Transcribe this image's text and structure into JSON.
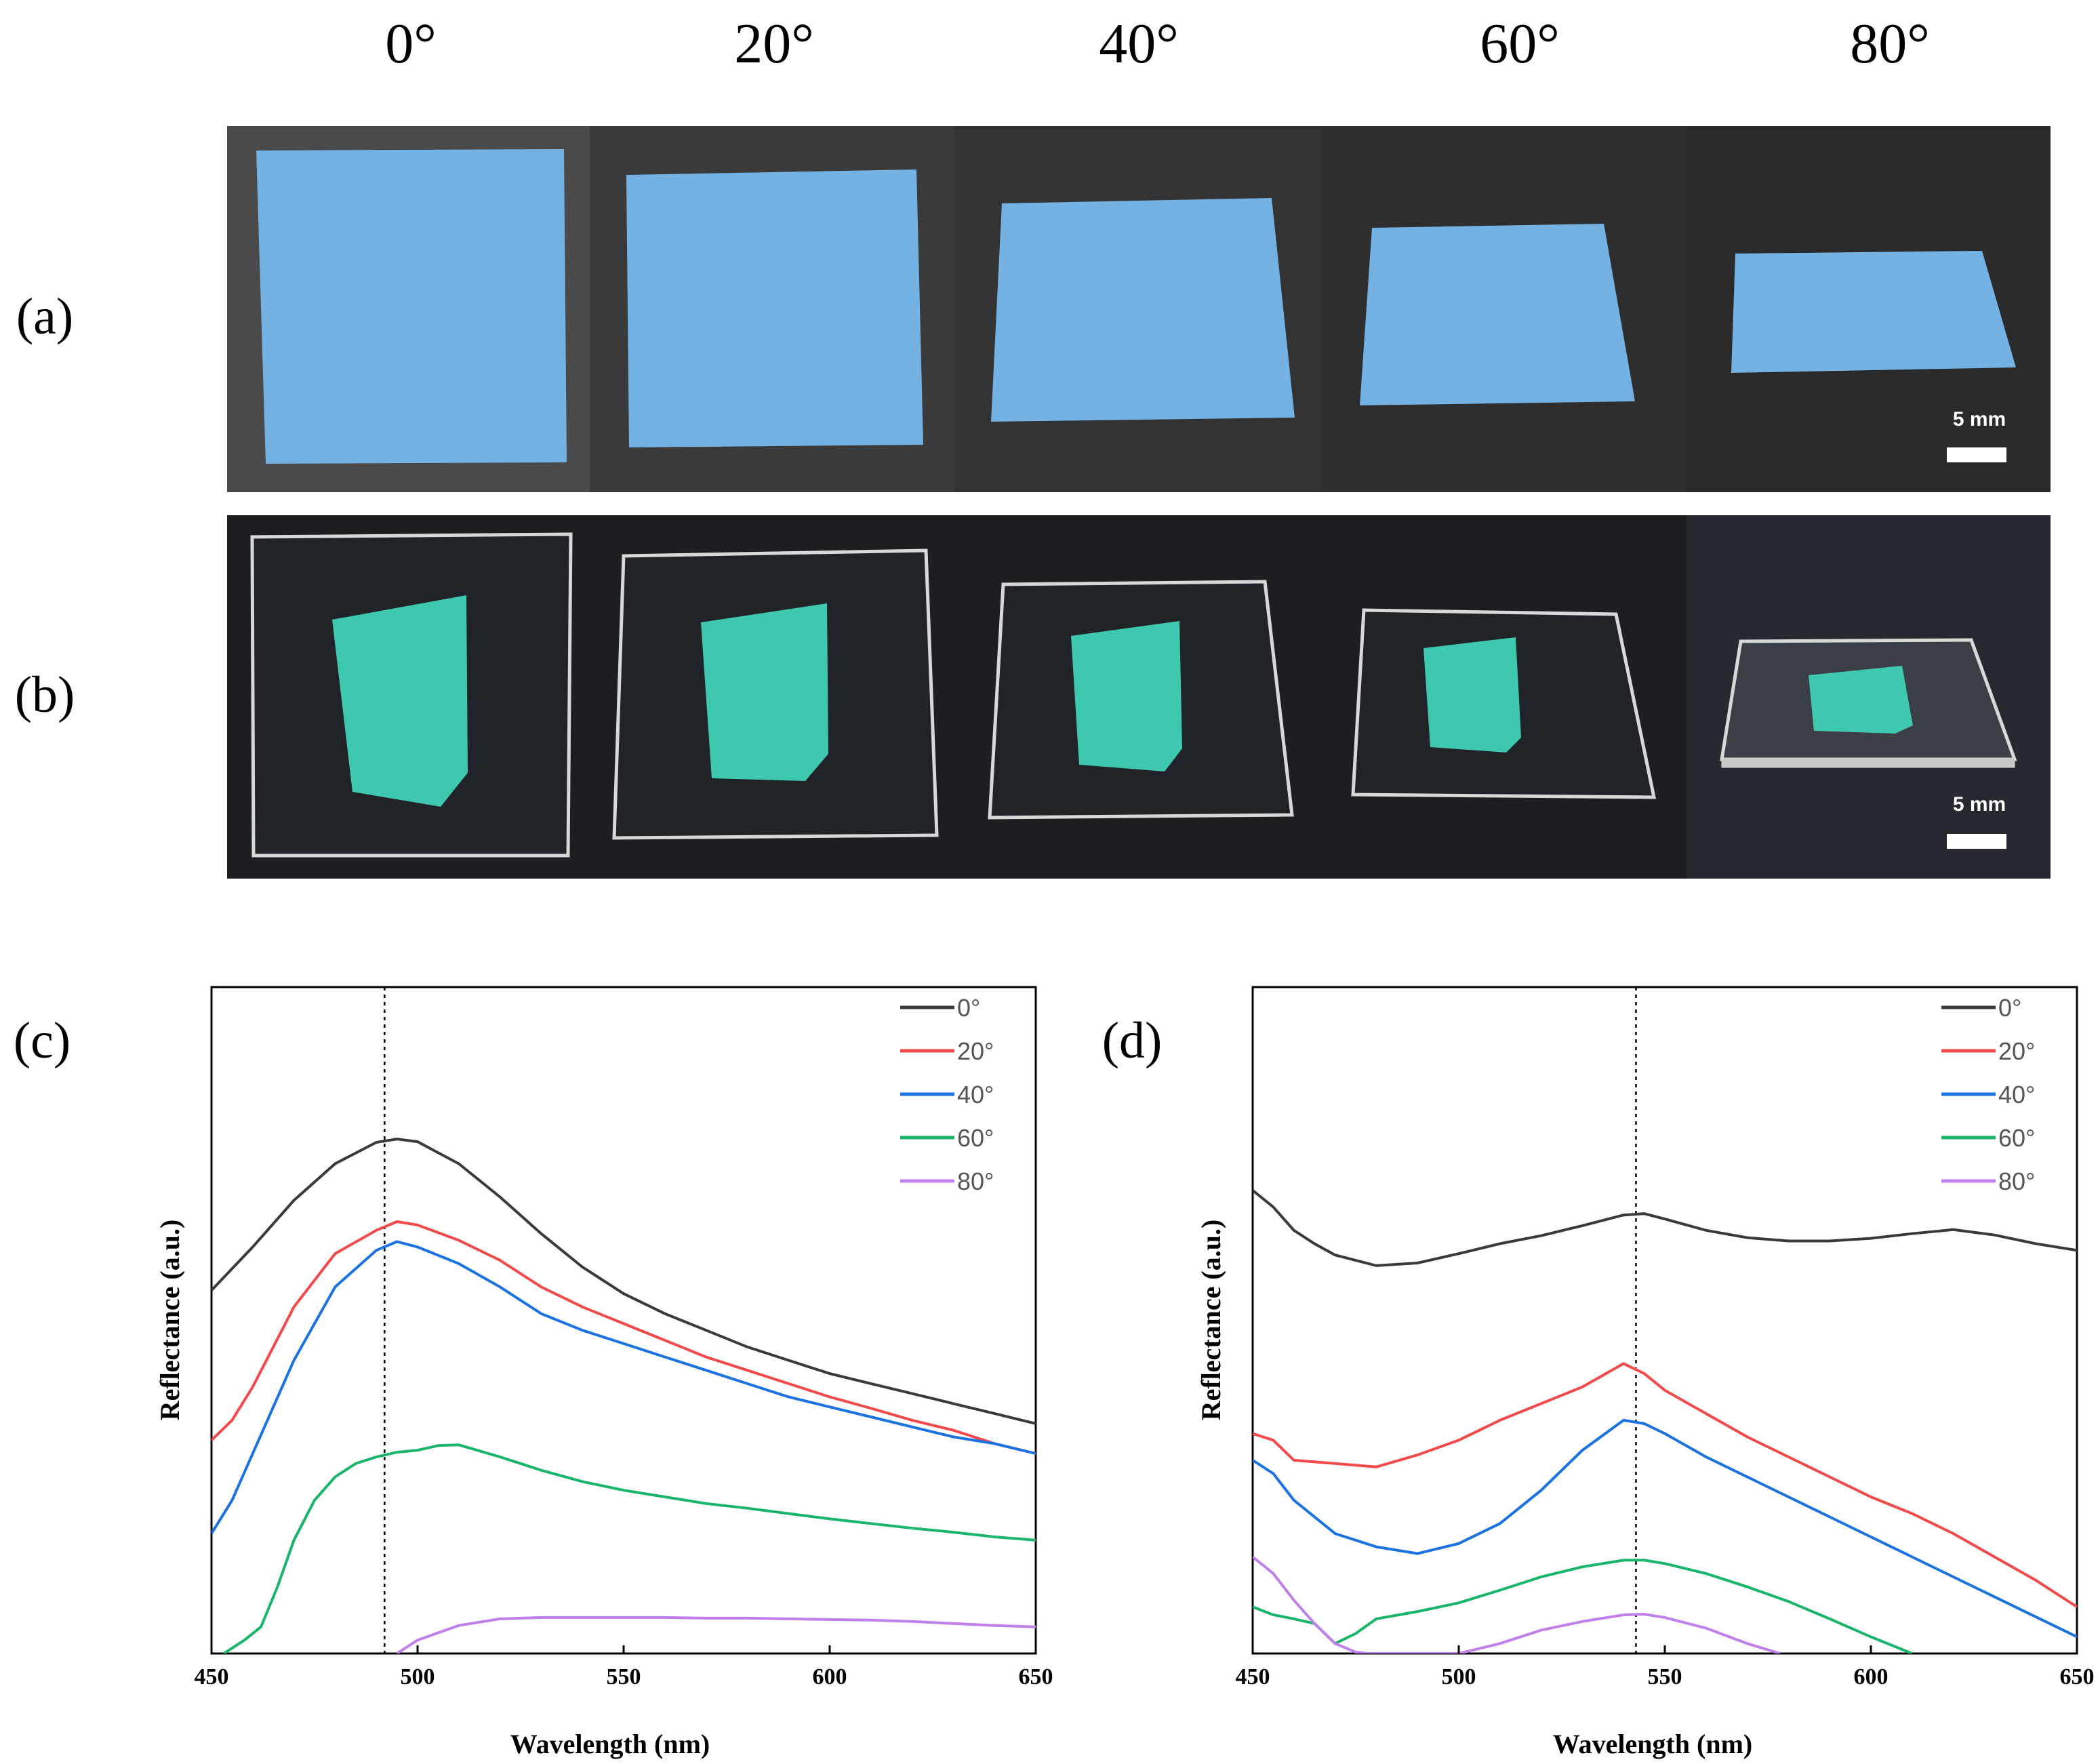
{
  "figure": {
    "angle_headers": [
      "0°",
      "20°",
      "40°",
      "60°",
      "80°"
    ],
    "row_labels": {
      "a": "(a)",
      "b": "(b)"
    },
    "scale_bar_label": "5 mm",
    "colors": {
      "row_a_background": "#2b2b2b",
      "row_a_film": "#74b2e4",
      "row_b_background": "#1c1e22",
      "row_b_film": "#3ec8b0",
      "glass_edge": "#d8d8d8",
      "scale_bar": "#ffffff"
    },
    "panels": {
      "c": {
        "label": "(c)"
      },
      "d": {
        "label": "(d)"
      }
    }
  },
  "chart_data": [
    {
      "id": "c",
      "type": "line",
      "label": "(c)",
      "title": "",
      "xlabel": "Wavelength (nm)",
      "ylabel": "Reflectance (a.u.)",
      "xlim": [
        450,
        650
      ],
      "ylim": [
        0,
        100
      ],
      "x_ticks": [
        450,
        500,
        550,
        600,
        650
      ],
      "y_ticks_shown": false,
      "grid": false,
      "legend_position": "top-right",
      "reference_line_x": 492,
      "series": [
        {
          "name": "0°",
          "color": "#3a3a3a",
          "x": [
            450,
            460,
            470,
            480,
            490,
            495,
            500,
            510,
            520,
            530,
            540,
            550,
            560,
            570,
            580,
            590,
            600,
            610,
            620,
            630,
            640,
            650
          ],
          "y": [
            54.5,
            61,
            68,
            73.5,
            76.7,
            77.2,
            76.8,
            73.5,
            68.5,
            63,
            58,
            54,
            51,
            48.5,
            46,
            44,
            42,
            40.5,
            39,
            37.5,
            36,
            34.5
          ]
        },
        {
          "name": "20°",
          "color": "#f24a4a",
          "x": [
            450,
            455,
            460,
            470,
            480,
            490,
            495,
            500,
            510,
            520,
            530,
            540,
            550,
            560,
            570,
            580,
            590,
            600,
            610,
            620,
            630,
            640,
            650
          ],
          "y": [
            32,
            35,
            40,
            52,
            60,
            63.5,
            64.8,
            64.3,
            62,
            59,
            55,
            52,
            49.5,
            47,
            44.5,
            42.5,
            40.5,
            38.5,
            36.8,
            35,
            33.5,
            31.5,
            30
          ]
        },
        {
          "name": "40°",
          "color": "#1a73e0",
          "x": [
            450,
            455,
            460,
            470,
            480,
            490,
            495,
            500,
            510,
            520,
            530,
            540,
            550,
            560,
            570,
            580,
            590,
            600,
            610,
            620,
            630,
            640,
            650
          ],
          "y": [
            18,
            23,
            30,
            44,
            55,
            60.5,
            61.8,
            61,
            58.5,
            55,
            51,
            48.5,
            46.5,
            44.5,
            42.5,
            40.5,
            38.5,
            37,
            35.5,
            34,
            32.5,
            31.5,
            30
          ]
        },
        {
          "name": "60°",
          "color": "#19b56a",
          "x": [
            453,
            458,
            462,
            466,
            470,
            475,
            480,
            485,
            490,
            495,
            500,
            505,
            510,
            520,
            530,
            540,
            550,
            560,
            570,
            580,
            590,
            600,
            610,
            620,
            630,
            640,
            650
          ],
          "y": [
            0,
            2,
            4,
            10,
            17,
            23,
            26.5,
            28.5,
            29.5,
            30.2,
            30.5,
            31.2,
            31.3,
            29.5,
            27.5,
            25.8,
            24.5,
            23.5,
            22.5,
            21.8,
            21,
            20.2,
            19.5,
            18.8,
            18.2,
            17.5,
            17
          ]
        },
        {
          "name": "80°",
          "color": "#c080ec",
          "x": [
            495,
            500,
            510,
            520,
            530,
            540,
            550,
            560,
            570,
            580,
            590,
            600,
            610,
            620,
            630,
            640,
            650
          ],
          "y": [
            0,
            2,
            4.2,
            5.2,
            5.4,
            5.4,
            5.4,
            5.4,
            5.3,
            5.3,
            5.2,
            5.1,
            5.0,
            4.8,
            4.5,
            4.2,
            4.0
          ]
        }
      ]
    },
    {
      "id": "d",
      "type": "line",
      "label": "(d)",
      "title": "",
      "xlabel": "Wavelength (nm)",
      "ylabel": "Reflectance (a.u.)",
      "xlim": [
        450,
        650
      ],
      "ylim": [
        0,
        100
      ],
      "x_ticks": [
        450,
        500,
        550,
        600,
        650
      ],
      "y_ticks_shown": false,
      "grid": false,
      "legend_position": "top-right",
      "reference_line_x": 543,
      "series": [
        {
          "name": "0°",
          "color": "#3a3a3a",
          "x": [
            450,
            455,
            460,
            465,
            470,
            480,
            490,
            500,
            510,
            520,
            530,
            540,
            545,
            550,
            560,
            570,
            580,
            590,
            600,
            610,
            620,
            630,
            640,
            650
          ],
          "y": [
            69.5,
            67,
            63.5,
            61.5,
            59.8,
            58.2,
            58.6,
            60,
            61.5,
            62.7,
            64.2,
            65.8,
            66,
            65.2,
            63.5,
            62.4,
            61.9,
            61.9,
            62.3,
            63,
            63.6,
            62.8,
            61.5,
            60.5
          ]
        },
        {
          "name": "20°",
          "color": "#f24a4a",
          "x": [
            450,
            455,
            460,
            470,
            480,
            490,
            500,
            510,
            520,
            530,
            540,
            545,
            550,
            560,
            570,
            580,
            590,
            600,
            610,
            620,
            630,
            640,
            650
          ],
          "y": [
            33,
            32,
            29,
            28.5,
            28,
            29.8,
            32,
            35,
            37.5,
            40,
            43.5,
            42,
            39.5,
            36,
            32.5,
            29.5,
            26.5,
            23.5,
            21,
            18,
            14.5,
            11,
            7
          ]
        },
        {
          "name": "40°",
          "color": "#1a73e0",
          "x": [
            450,
            455,
            460,
            470,
            480,
            490,
            500,
            510,
            520,
            530,
            540,
            545,
            550,
            560,
            570,
            580,
            590,
            600,
            610,
            620,
            630,
            640,
            650
          ],
          "y": [
            29,
            27,
            23,
            18,
            16,
            15,
            16.5,
            19.5,
            24.5,
            30.5,
            35,
            34.5,
            33,
            29.5,
            26.5,
            23.5,
            20.5,
            17.5,
            14.5,
            11.5,
            8.5,
            5.5,
            2.5
          ]
        },
        {
          "name": "60°",
          "color": "#19b56a",
          "x": [
            450,
            455,
            460,
            465,
            470,
            475,
            480,
            490,
            500,
            510,
            520,
            530,
            540,
            545,
            550,
            560,
            570,
            580,
            590,
            600,
            610
          ],
          "y": [
            7,
            5.8,
            5.2,
            4.5,
            1.5,
            3,
            5.2,
            6.3,
            7.6,
            9.5,
            11.5,
            13,
            14,
            14,
            13.5,
            12,
            10,
            7.8,
            5.2,
            2.5,
            0
          ]
        },
        {
          "name": "80°",
          "color": "#c080ec",
          "x": [
            450,
            455,
            460,
            465,
            470,
            475,
            478,
            500,
            510,
            520,
            530,
            540,
            545,
            550,
            560,
            570,
            578
          ],
          "y": [
            14.5,
            12,
            8,
            4.5,
            1.5,
            0.2,
            0,
            0,
            1.5,
            3.5,
            4.8,
            5.8,
            5.9,
            5.4,
            3.8,
            1.5,
            0
          ]
        }
      ]
    }
  ]
}
